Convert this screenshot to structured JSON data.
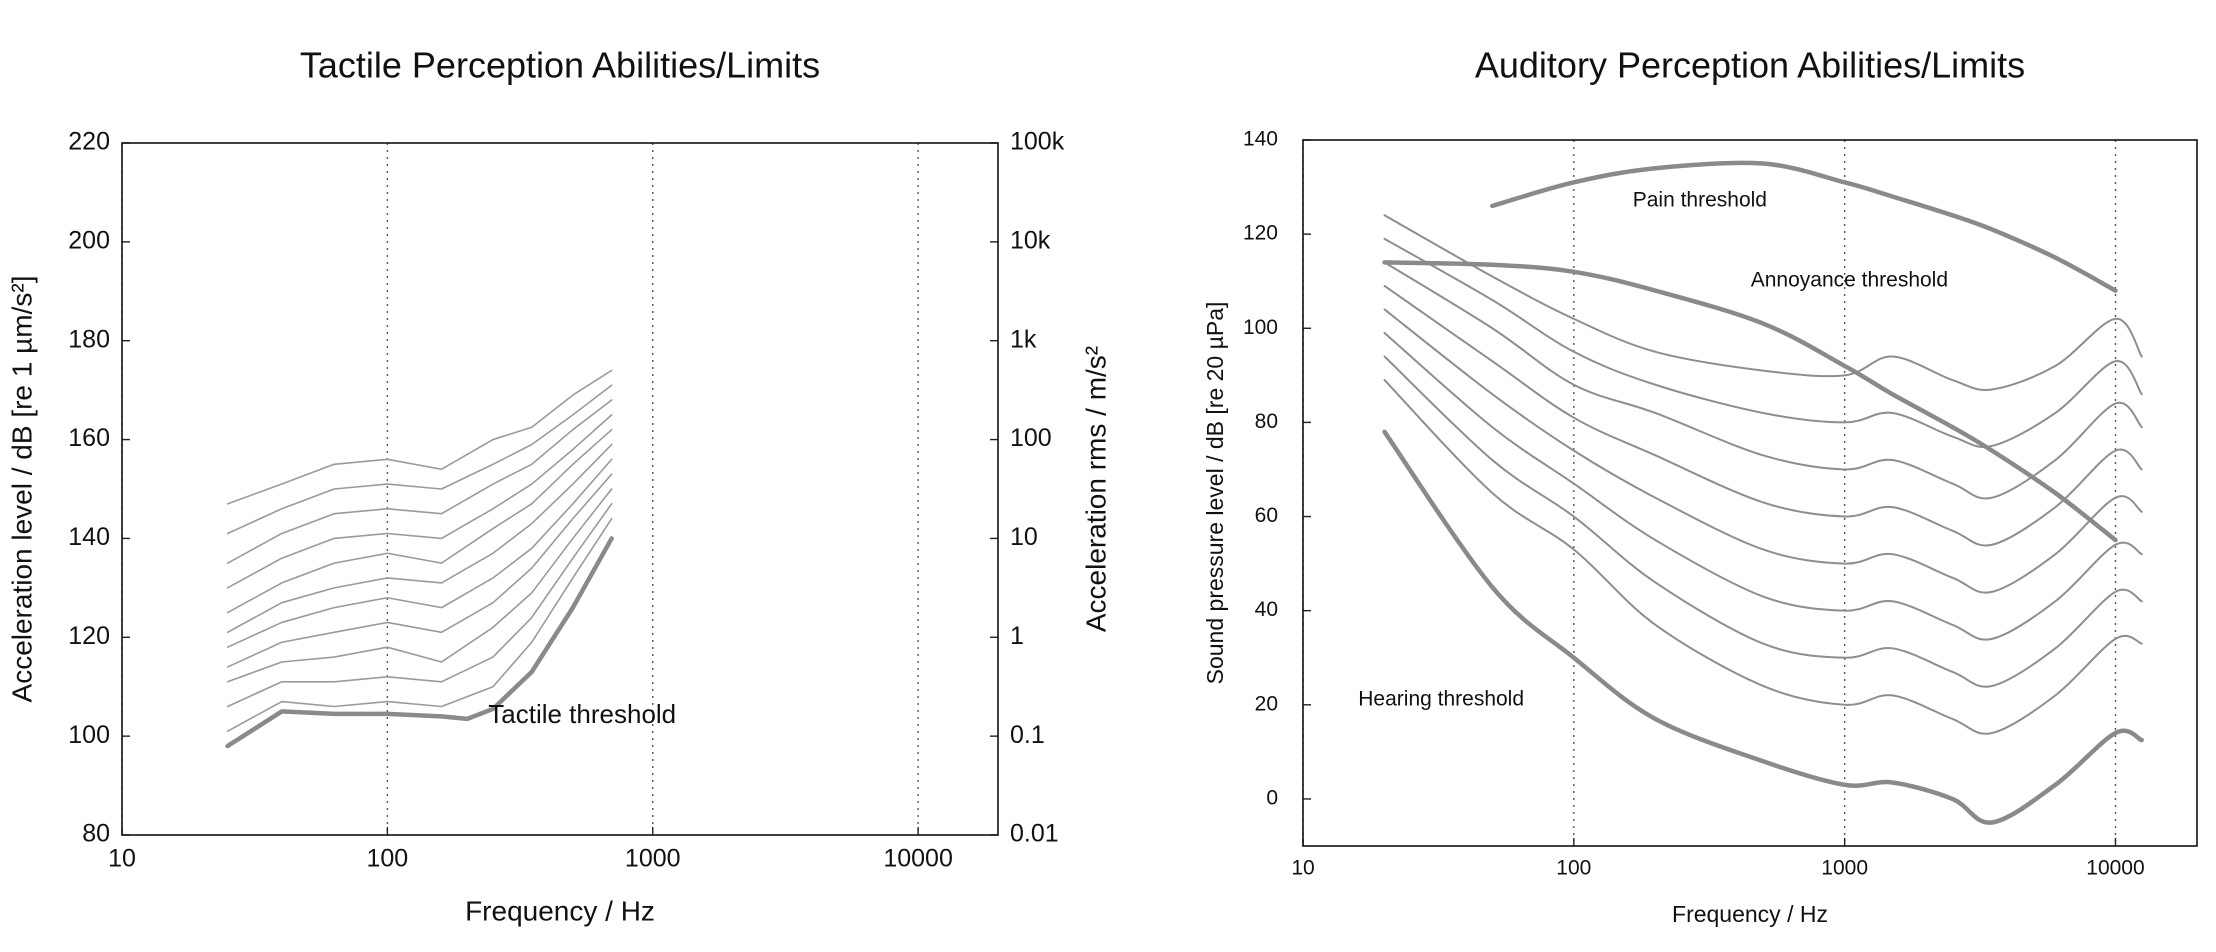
{
  "chart_data": [
    {
      "type": "line",
      "title": "Tactile Perception Abilities/Limits",
      "xlabel": "Frequency / Hz",
      "ylabel": "Acceleration level / dB [re 1 µm/s²]",
      "y2label": "Acceleration rms / m/s²",
      "xscale": "log",
      "xlim": [
        10,
        20000
      ],
      "xticks": [
        10,
        100,
        1000,
        10000
      ],
      "ylim": [
        80,
        220
      ],
      "yticks": [
        80,
        100,
        120,
        140,
        160,
        180,
        200,
        220
      ],
      "y2scale": "log",
      "y2lim": [
        0.01,
        100000
      ],
      "y2ticks": [
        0.01,
        0.1,
        1,
        10,
        100,
        {
          "value": 1000,
          "label": "1k"
        },
        {
          "value": 10000,
          "label": "10k"
        },
        {
          "value": 100000,
          "label": "100k"
        }
      ],
      "grid": "x",
      "smooth": false,
      "x": [
        25,
        40,
        63,
        100,
        160,
        200,
        250,
        350,
        500,
        700
      ],
      "series": [
        {
          "color": "#9a9a9a",
          "width": 1.6,
          "values": [
            147,
            151,
            155,
            156,
            154,
            157,
            160,
            162.5,
            169,
            174
          ]
        },
        {
          "color": "#9a9a9a",
          "width": 1.6,
          "values": [
            141,
            146,
            150,
            151,
            150,
            152.5,
            155,
            159,
            165,
            171
          ]
        },
        {
          "color": "#9a9a9a",
          "width": 1.6,
          "values": [
            135,
            141,
            145,
            146,
            145,
            148,
            151,
            155,
            162,
            168
          ]
        },
        {
          "color": "#9a9a9a",
          "width": 1.6,
          "values": [
            130,
            136,
            140,
            141,
            140,
            143,
            146,
            151,
            158,
            165
          ]
        },
        {
          "color": "#9a9a9a",
          "width": 1.6,
          "values": [
            125,
            131,
            135,
            137,
            135,
            138.5,
            142,
            147,
            155,
            162
          ]
        },
        {
          "color": "#9a9a9a",
          "width": 1.6,
          "values": [
            121,
            127,
            130,
            132,
            131,
            134,
            137,
            143,
            151,
            159
          ]
        },
        {
          "color": "#9a9a9a",
          "width": 1.6,
          "values": [
            118,
            123,
            126,
            128,
            126,
            129,
            132,
            138,
            147,
            156
          ]
        },
        {
          "color": "#9a9a9a",
          "width": 1.6,
          "values": [
            114,
            119,
            121,
            123,
            121,
            124,
            127,
            134,
            144,
            153
          ]
        },
        {
          "color": "#9a9a9a",
          "width": 1.6,
          "values": [
            111,
            115,
            116,
            118,
            115,
            118.5,
            122,
            129,
            140,
            150
          ]
        },
        {
          "color": "#9a9a9a",
          "width": 1.6,
          "values": [
            106,
            111,
            111,
            112,
            111,
            113.5,
            116,
            124,
            136,
            147
          ]
        },
        {
          "color": "#9a9a9a",
          "width": 1.6,
          "values": [
            101,
            107,
            106,
            107,
            106,
            108,
            110,
            119,
            132,
            144
          ]
        },
        {
          "color": "#8a8a8a",
          "width": 4.5,
          "values": [
            98,
            105,
            104.5,
            104.5,
            104,
            103.5,
            105.5,
            113,
            126,
            140
          ]
        }
      ],
      "annotations": [
        {
          "text": "Tactile threshold",
          "x": 240,
          "y": 104
        }
      ]
    },
    {
      "type": "line",
      "title": "Auditory Perception Abilities/Limits",
      "xlabel": "Frequency / Hz",
      "ylabel": "Sound pressure level / dB [re 20 µPa]",
      "xscale": "log",
      "xlim": [
        10,
        20000
      ],
      "xticks": [
        10,
        100,
        1000,
        10000
      ],
      "ylim": [
        -10,
        140
      ],
      "yticks": [
        0,
        20,
        40,
        60,
        80,
        100,
        120,
        140
      ],
      "grid": "x",
      "smooth": true,
      "x": [
        20,
        50,
        100,
        200,
        500,
        1000,
        1500,
        2500,
        3500,
        6000,
        10000,
        12500
      ],
      "series": [
        {
          "color": "#8e8e8e",
          "width": 2,
          "values": [
            89,
            65,
            53,
            37,
            24,
            20,
            22,
            17,
            14,
            22,
            34,
            33
          ]
        },
        {
          "color": "#8e8e8e",
          "width": 2,
          "values": [
            94,
            72,
            60,
            46,
            33,
            30,
            32,
            27,
            24,
            32,
            44,
            42
          ]
        },
        {
          "color": "#8e8e8e",
          "width": 2,
          "values": [
            99,
            79,
            67,
            55,
            43,
            40,
            42,
            37,
            34,
            42,
            54,
            52
          ]
        },
        {
          "color": "#8e8e8e",
          "width": 2,
          "values": [
            104,
            86,
            74,
            64,
            53,
            50,
            52,
            47,
            44,
            52,
            64,
            61
          ]
        },
        {
          "color": "#8e8e8e",
          "width": 2,
          "values": [
            109,
            93,
            81,
            73,
            63,
            60,
            62,
            57,
            54,
            62,
            74,
            70
          ]
        },
        {
          "color": "#8e8e8e",
          "width": 2,
          "values": [
            114,
            100,
            88,
            82,
            73,
            70,
            72,
            67,
            64,
            72,
            84,
            79
          ]
        },
        {
          "color": "#8e8e8e",
          "width": 2,
          "values": [
            119,
            106,
            95,
            88,
            82,
            80,
            82,
            77,
            75,
            82,
            93,
            86
          ]
        },
        {
          "color": "#8e8e8e",
          "width": 2,
          "values": [
            124,
            111,
            102,
            95,
            91,
            90,
            94,
            89,
            87,
            92,
            102,
            94
          ]
        },
        {
          "color": "#8a8a8a",
          "width": 4.5,
          "values": [
            78,
            45,
            30,
            17,
            8,
            3,
            3.5,
            0,
            -5,
            3,
            14,
            12.5
          ]
        },
        {
          "color": "#8a8a8a",
          "width": 4.5,
          "values": [
            null,
            126,
            131,
            134,
            135,
            131,
            128,
            124,
            121,
            115,
            108,
            null
          ]
        },
        {
          "color": "#8a8a8a",
          "width": 4.5,
          "values": [
            114,
            113.5,
            112,
            108,
            101,
            92,
            86,
            79,
            74,
            65,
            55,
            null
          ]
        }
      ],
      "annotations": [
        {
          "text": "Pain threshold",
          "x": 165,
          "y": 127
        },
        {
          "text": "Annoyance threshold",
          "x": 450,
          "y": 110
        },
        {
          "text": "Hearing threshold",
          "x": 16,
          "y": 21
        }
      ]
    }
  ]
}
